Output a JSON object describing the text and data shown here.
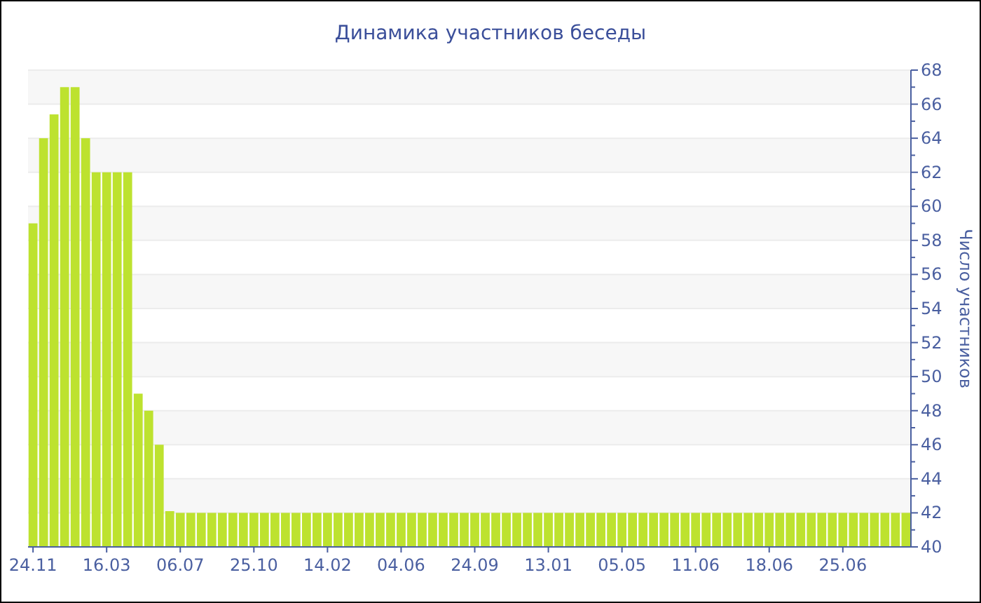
{
  "chart_data": {
    "type": "bar",
    "title": "Динамика участников беседы",
    "ylabel": "Число участников",
    "categories": [
      "24.11",
      null,
      null,
      null,
      null,
      null,
      null,
      "16.03",
      null,
      null,
      null,
      null,
      null,
      null,
      "06.07",
      null,
      null,
      null,
      null,
      null,
      null,
      "25.10",
      null,
      null,
      null,
      null,
      null,
      null,
      "14.02",
      null,
      null,
      null,
      null,
      null,
      null,
      "04.06",
      null,
      null,
      null,
      null,
      null,
      null,
      "24.09",
      null,
      null,
      null,
      null,
      null,
      null,
      "13.01",
      null,
      null,
      null,
      null,
      null,
      null,
      "05.05",
      null,
      null,
      null,
      null,
      null,
      null,
      "11.06",
      null,
      null,
      null,
      null,
      null,
      null,
      "18.06",
      null,
      null,
      null,
      null,
      null,
      null,
      "25.06",
      null,
      null,
      null,
      null,
      null,
      null
    ],
    "values": [
      59,
      64,
      65.4,
      67,
      67,
      64,
      62,
      62,
      62,
      62,
      49,
      48,
      46,
      42.1,
      42,
      42,
      42,
      42,
      42,
      42,
      42,
      42,
      42,
      42,
      42,
      42,
      42,
      42,
      42,
      42,
      42,
      42,
      42,
      42,
      42,
      42,
      42,
      42,
      42,
      42,
      42,
      42,
      42,
      42,
      42,
      42,
      42,
      42,
      42,
      42,
      42,
      42,
      42,
      42,
      42,
      42,
      42,
      42,
      42,
      42,
      42,
      42,
      42,
      42,
      42,
      42,
      42,
      42,
      42,
      42,
      42,
      42,
      42,
      42,
      42,
      42,
      42,
      42,
      42,
      42,
      42,
      42,
      42,
      42
    ],
    "color": "#bde22f",
    "ylim": [
      40,
      68
    ],
    "yticks": [
      40,
      {
        "value": 41,
        "label": null
      },
      42,
      {
        "value": 43,
        "label": null
      },
      44,
      {
        "value": 45,
        "label": null
      },
      46,
      {
        "value": 47,
        "label": null
      },
      48,
      {
        "value": 49,
        "label": null
      },
      50,
      {
        "value": 51,
        "label": null
      },
      52,
      {
        "value": 53,
        "label": null
      },
      54,
      {
        "value": 55,
        "label": null
      },
      56,
      {
        "value": 57,
        "label": null
      },
      58,
      {
        "value": 59,
        "label": null
      },
      60,
      {
        "value": 61,
        "label": null
      },
      62,
      {
        "value": 63,
        "label": null
      },
      64,
      {
        "value": 65,
        "label": null
      },
      66,
      {
        "value": 67,
        "label": null
      },
      68
    ],
    "grid": "y"
  }
}
